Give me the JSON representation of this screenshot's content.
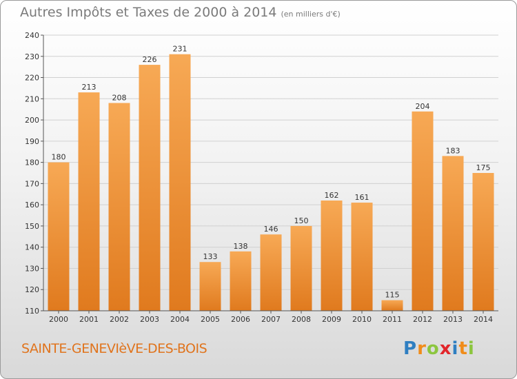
{
  "title": "Autres Impôts et Taxes de 2000 à 2014",
  "title_unit": "(en milliers d'€)",
  "city": "SAINTE-GENEVIèVE-DES-BOIS",
  "logo": {
    "text": "Proxiti",
    "letters": [
      {
        "ch": "P",
        "color": "#2f7fc1"
      },
      {
        "ch": "r",
        "color": "#f08c1a"
      },
      {
        "ch": "o",
        "color": "#8cc63f"
      },
      {
        "ch": "x",
        "color": "#e2262b"
      },
      {
        "ch": "i",
        "color": "#2f7fc1"
      },
      {
        "ch": "t",
        "color": "#f08c1a"
      },
      {
        "ch": "i",
        "color": "#8cc63f"
      }
    ]
  },
  "colors": {
    "bar_top": "#f7a955",
    "bar_bottom": "#e07a1e",
    "axis": "#555555",
    "grid": "#d0d0d0"
  },
  "chart_data": {
    "type": "bar",
    "title": "Autres Impôts et Taxes de 2000 à 2014",
    "xlabel": "",
    "ylabel": "",
    "ylim": [
      110,
      240
    ],
    "yticks": [
      110,
      120,
      130,
      140,
      150,
      160,
      170,
      180,
      190,
      200,
      210,
      220,
      230,
      240
    ],
    "categories": [
      "2000",
      "2001",
      "2002",
      "2003",
      "2004",
      "2005",
      "2006",
      "2007",
      "2008",
      "2009",
      "2010",
      "2011",
      "2012",
      "2013",
      "2014"
    ],
    "values": [
      180,
      213,
      208,
      226,
      231,
      133,
      138,
      146,
      150,
      162,
      161,
      115,
      204,
      183,
      175
    ],
    "grid": true,
    "data_labels": true
  }
}
